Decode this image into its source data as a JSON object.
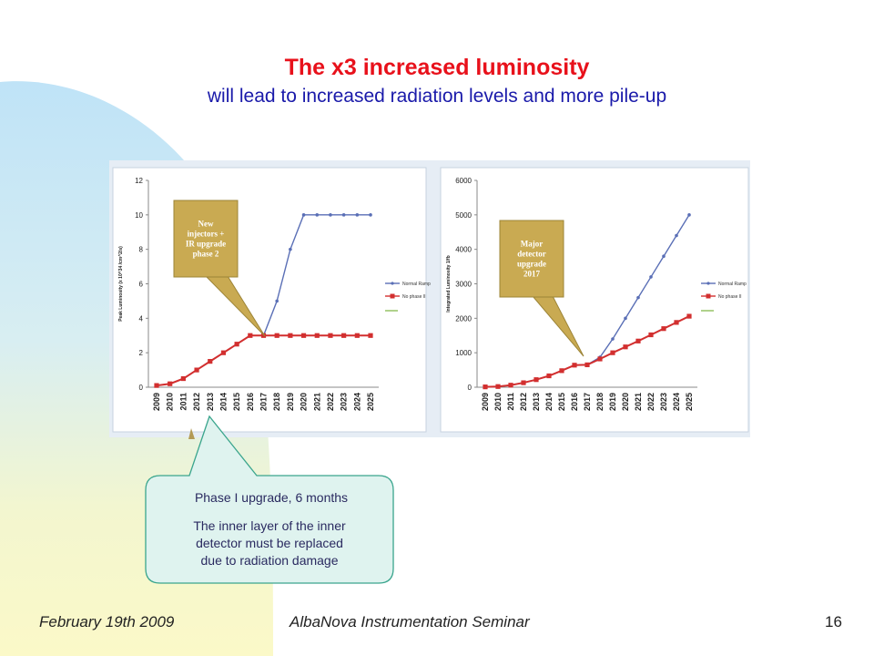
{
  "slide": {
    "title": "The x3 increased luminosity",
    "subtitle": "will lead to increased radiation levels and more pile-up"
  },
  "colors": {
    "title": "#e8111b",
    "subtitle": "#1a1aaa",
    "normal_ramp": "#5a6fb6",
    "no_phase2": "#d22f2f",
    "callout_fill": "#c9aa52",
    "phase1_callout_fill": "#dff3ef",
    "phase1_callout_border": "#3aa58d",
    "phase1_text": "#2a2a60"
  },
  "chart_data": [
    {
      "type": "line",
      "ylabel": "Peak Luminosity (x 10^34 /cm^2/s)",
      "xlabel": "",
      "x": [
        "2009",
        "2010",
        "2011",
        "2012",
        "2013",
        "2014",
        "2015",
        "2016",
        "2017",
        "2018",
        "2019",
        "2020",
        "2021",
        "2022",
        "2023",
        "2024",
        "2025"
      ],
      "ylim": [
        0,
        12
      ],
      "yticks": [
        0,
        2,
        4,
        6,
        8,
        10,
        12
      ],
      "legend_position": "right",
      "series": [
        {
          "name": "Normal Ramp",
          "values": [
            0.1,
            0.2,
            0.5,
            1.0,
            1.5,
            2.0,
            2.5,
            3.0,
            3.0,
            5.0,
            8.0,
            10,
            10,
            10,
            10,
            10,
            10
          ]
        },
        {
          "name": "No phase II",
          "values": [
            0.1,
            0.2,
            0.5,
            1.0,
            1.5,
            2.0,
            2.5,
            3.0,
            3.0,
            3.0,
            3.0,
            3.0,
            3.0,
            3.0,
            3.0,
            3.0,
            3.0
          ]
        }
      ],
      "callout": "New injectors + IR upgrade phase 2"
    },
    {
      "type": "line",
      "ylabel": "Integrated Luminosity 1/fb",
      "xlabel": "",
      "x": [
        "2009",
        "2010",
        "2011",
        "2012",
        "2013",
        "2014",
        "2015",
        "2016",
        "2017",
        "2018",
        "2019",
        "2020",
        "2021",
        "2022",
        "2023",
        "2024",
        "2025"
      ],
      "ylim": [
        0,
        6000
      ],
      "yticks": [
        0,
        1000,
        2000,
        3000,
        4000,
        5000,
        6000
      ],
      "legend_position": "right",
      "series": [
        {
          "name": "Normal Ramp",
          "values": [
            10,
            20,
            60,
            130,
            220,
            330,
            480,
            640,
            650,
            870,
            1400,
            2000,
            2600,
            3200,
            3800,
            4400,
            5000
          ]
        },
        {
          "name": "No phase II",
          "values": [
            10,
            20,
            60,
            130,
            220,
            330,
            480,
            640,
            650,
            820,
            1000,
            1170,
            1340,
            1520,
            1700,
            1880,
            2060
          ]
        }
      ],
      "callout": "Major detector upgrade 2017"
    }
  ],
  "phase1_callout": {
    "line1": "Phase I upgrade, 6 months",
    "line2": "The inner layer of the inner detector must be replaced due to radiation damage"
  },
  "footer": {
    "date": "February 19th 2009",
    "seminar": "AlbaNova Instrumentation Seminar",
    "page": "16"
  }
}
